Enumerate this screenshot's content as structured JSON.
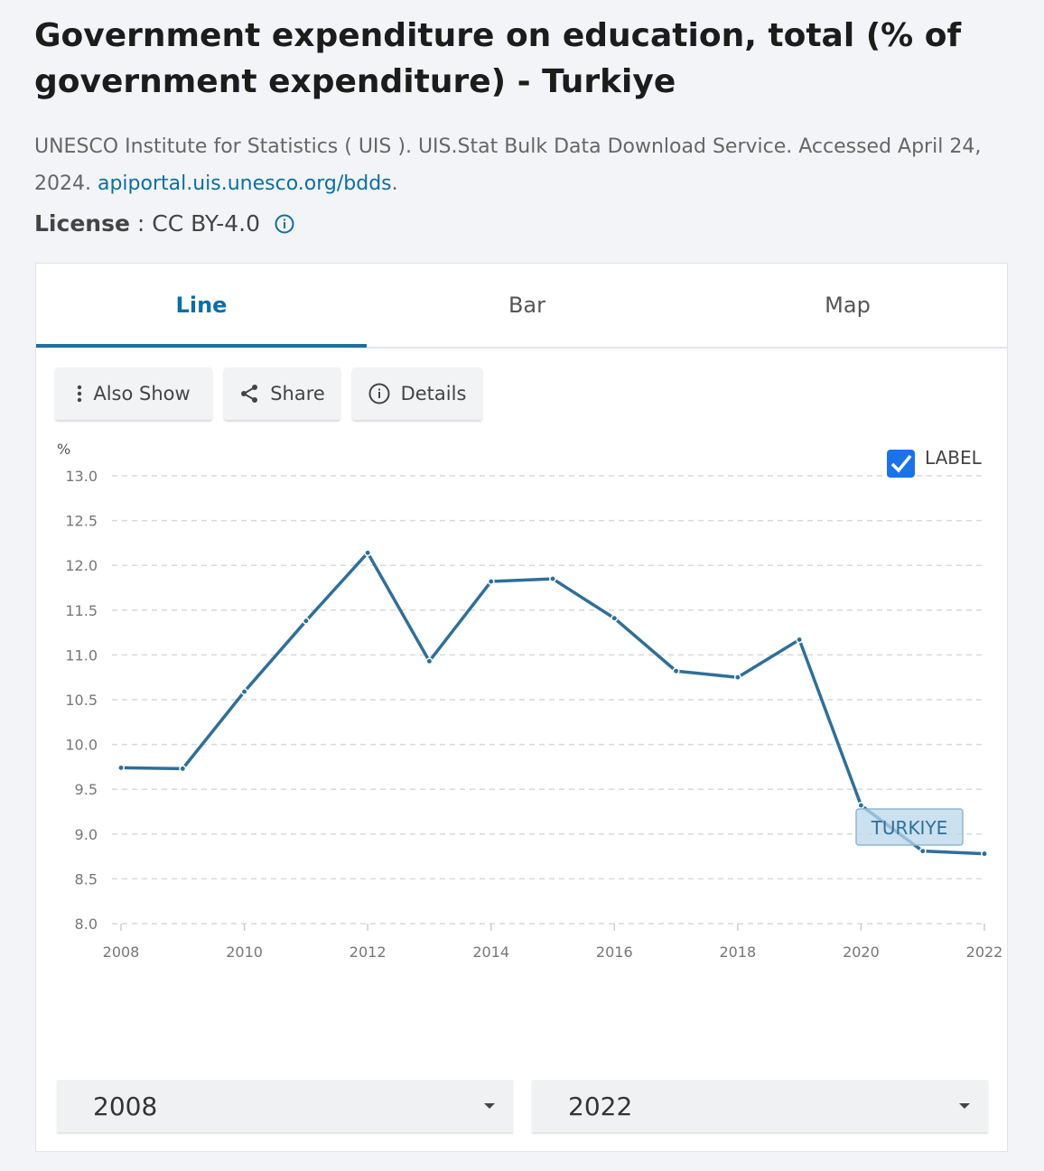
{
  "header": {
    "title": "Government expenditure on education, total (% of government expenditure) - Turkiye",
    "source_text": "UNESCO Institute for Statistics ( UIS ). UIS.Stat Bulk Data Download Service. Accessed April 24, 2024.",
    "source_link": "apiportal.uis.unesco.org/bdds",
    "source_end": ".",
    "license_label": "License",
    "license_sep": " : ",
    "license_value": "CC BY-4.0"
  },
  "tabs": [
    {
      "label": "Line"
    },
    {
      "label": "Bar"
    },
    {
      "label": "Map"
    }
  ],
  "toolbar": {
    "also_show": "Also Show",
    "share": "Share",
    "details": "Details"
  },
  "label_toggle": {
    "text": "LABEL",
    "checked": true
  },
  "range": {
    "start": "2008",
    "end": "2022"
  },
  "colors": {
    "line": "#2f6f9a",
    "accent": "#0b6fa4",
    "checkbox": "#1a73e8"
  },
  "chart_data": {
    "type": "line",
    "ylabel": "%",
    "ylim": [
      8.0,
      13.0
    ],
    "yticks": [
      "8.0",
      "8.5",
      "9.0",
      "9.5",
      "10.0",
      "10.5",
      "11.0",
      "11.5",
      "12.0",
      "12.5",
      "13.0"
    ],
    "xlim": [
      2008,
      2022
    ],
    "xticks": [
      "2008",
      "2010",
      "2012",
      "2014",
      "2016",
      "2018",
      "2020",
      "2022"
    ],
    "grid": true,
    "series": [
      {
        "name": "TURKIYE",
        "x": [
          2008,
          2009,
          2010,
          2011,
          2012,
          2013,
          2014,
          2015,
          2016,
          2017,
          2018,
          2019,
          2020,
          2021,
          2022
        ],
        "values": [
          9.74,
          9.73,
          10.59,
          11.38,
          12.14,
          10.93,
          11.82,
          11.85,
          11.41,
          10.82,
          10.75,
          11.17,
          9.32,
          8.81,
          8.78
        ]
      }
    ]
  }
}
